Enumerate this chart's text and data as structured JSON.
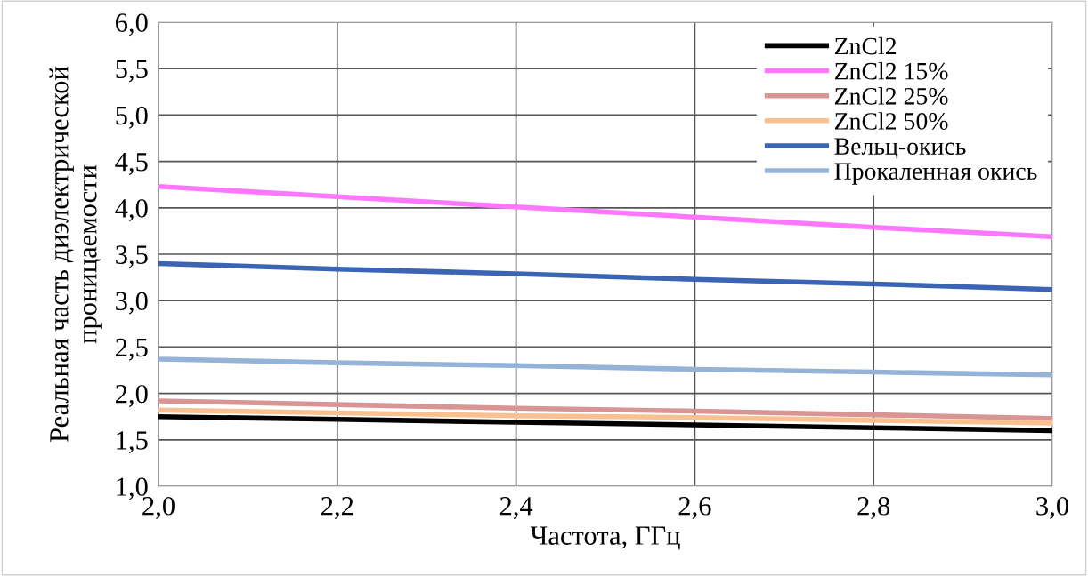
{
  "chart_data": {
    "type": "line",
    "xlabel": "Частота, ГГц",
    "ylabel": "Реальная часть диэлектрической проницаемости",
    "x": [
      2.0,
      2.2,
      2.4,
      2.6,
      2.8,
      3.0
    ],
    "series": [
      {
        "name": "ZnCl2",
        "color": "#000000",
        "values": [
          1.75,
          1.72,
          1.69,
          1.66,
          1.63,
          1.6
        ]
      },
      {
        "name": "ZnCl2 15%",
        "color": "#ff77ff",
        "values": [
          4.23,
          4.12,
          4.01,
          3.9,
          3.79,
          3.69
        ]
      },
      {
        "name": "ZnCl2 25%",
        "color": "#d99594",
        "values": [
          1.92,
          1.88,
          1.84,
          1.81,
          1.77,
          1.73
        ]
      },
      {
        "name": "ZnCl2 50%",
        "color": "#fac090",
        "values": [
          1.82,
          1.79,
          1.76,
          1.74,
          1.71,
          1.68
        ]
      },
      {
        "name": "Вельц-окись",
        "color": "#3c64b4",
        "values": [
          3.4,
          3.34,
          3.29,
          3.23,
          3.18,
          3.12
        ]
      },
      {
        "name": "Прокаленная окись",
        "color": "#95b3d7",
        "values": [
          2.37,
          2.33,
          2.3,
          2.26,
          2.23,
          2.2
        ]
      }
    ],
    "xlim": [
      2.0,
      3.0
    ],
    "xticks": [
      {
        "value": 2.0,
        "label": "2,0"
      },
      {
        "value": 2.2,
        "label": "2,2"
      },
      {
        "value": 2.4,
        "label": "2,4"
      },
      {
        "value": 2.6,
        "label": "2,6"
      },
      {
        "value": 2.8,
        "label": "2,8"
      },
      {
        "value": 3.0,
        "label": "3,0"
      }
    ],
    "ylim": [
      1.0,
      6.0
    ],
    "yticks": [
      {
        "value": 1.0,
        "label": "1,0"
      },
      {
        "value": 1.5,
        "label": "1,5"
      },
      {
        "value": 2.0,
        "label": "2,0"
      },
      {
        "value": 2.5,
        "label": "2,5"
      },
      {
        "value": 3.0,
        "label": "3,0"
      },
      {
        "value": 3.5,
        "label": "3,5"
      },
      {
        "value": 4.0,
        "label": "4,0"
      },
      {
        "value": 4.5,
        "label": "4,5"
      },
      {
        "value": 5.0,
        "label": "5,0"
      },
      {
        "value": 5.5,
        "label": "5,5"
      },
      {
        "value": 6.0,
        "label": "6,0"
      }
    ],
    "grid": true,
    "legend": "top right",
    "marker": "none",
    "line_style": "solid"
  }
}
